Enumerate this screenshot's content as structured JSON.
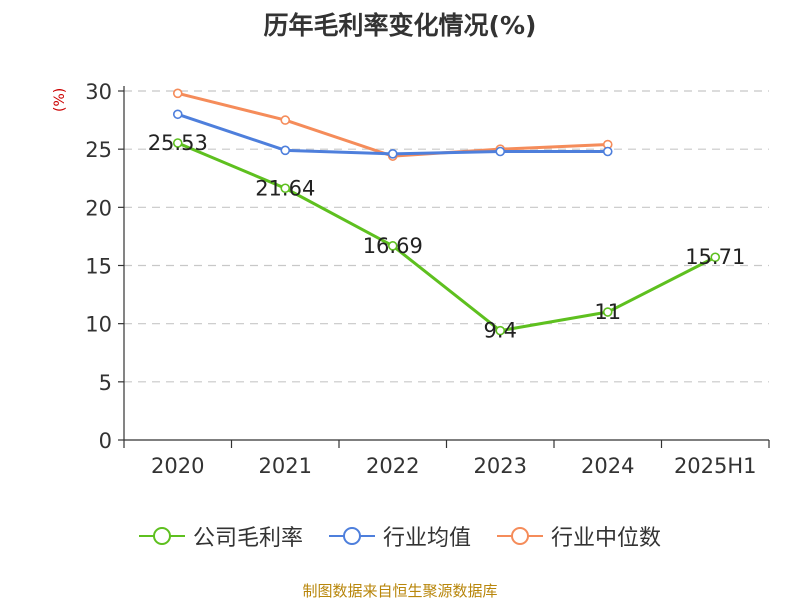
{
  "chart_data": {
    "type": "line",
    "title": "历年毛利率变化情况(%)",
    "unit_label": "(%)",
    "categories": [
      "2020",
      "2021",
      "2022",
      "2023",
      "2024",
      "2025H1"
    ],
    "ylim": [
      0,
      30
    ],
    "yticks": [
      0,
      5,
      10,
      15,
      20,
      25,
      30
    ],
    "grid": true,
    "legend_position": "bottom",
    "series": [
      {
        "name": "公司毛利率",
        "color": "#5ec01f",
        "show_labels": true,
        "values": [
          25.53,
          21.64,
          16.69,
          9.4,
          11,
          15.71
        ]
      },
      {
        "name": "行业均值",
        "color": "#4e7fdc",
        "show_labels": false,
        "values": [
          28.0,
          24.9,
          24.6,
          24.8,
          24.8,
          null
        ]
      },
      {
        "name": "行业中位数",
        "color": "#f58c5a",
        "show_labels": false,
        "values": [
          29.8,
          27.5,
          24.4,
          25.0,
          25.4,
          null
        ]
      }
    ]
  },
  "footer": {
    "source": "制图数据来自恒生聚源数据库"
  }
}
